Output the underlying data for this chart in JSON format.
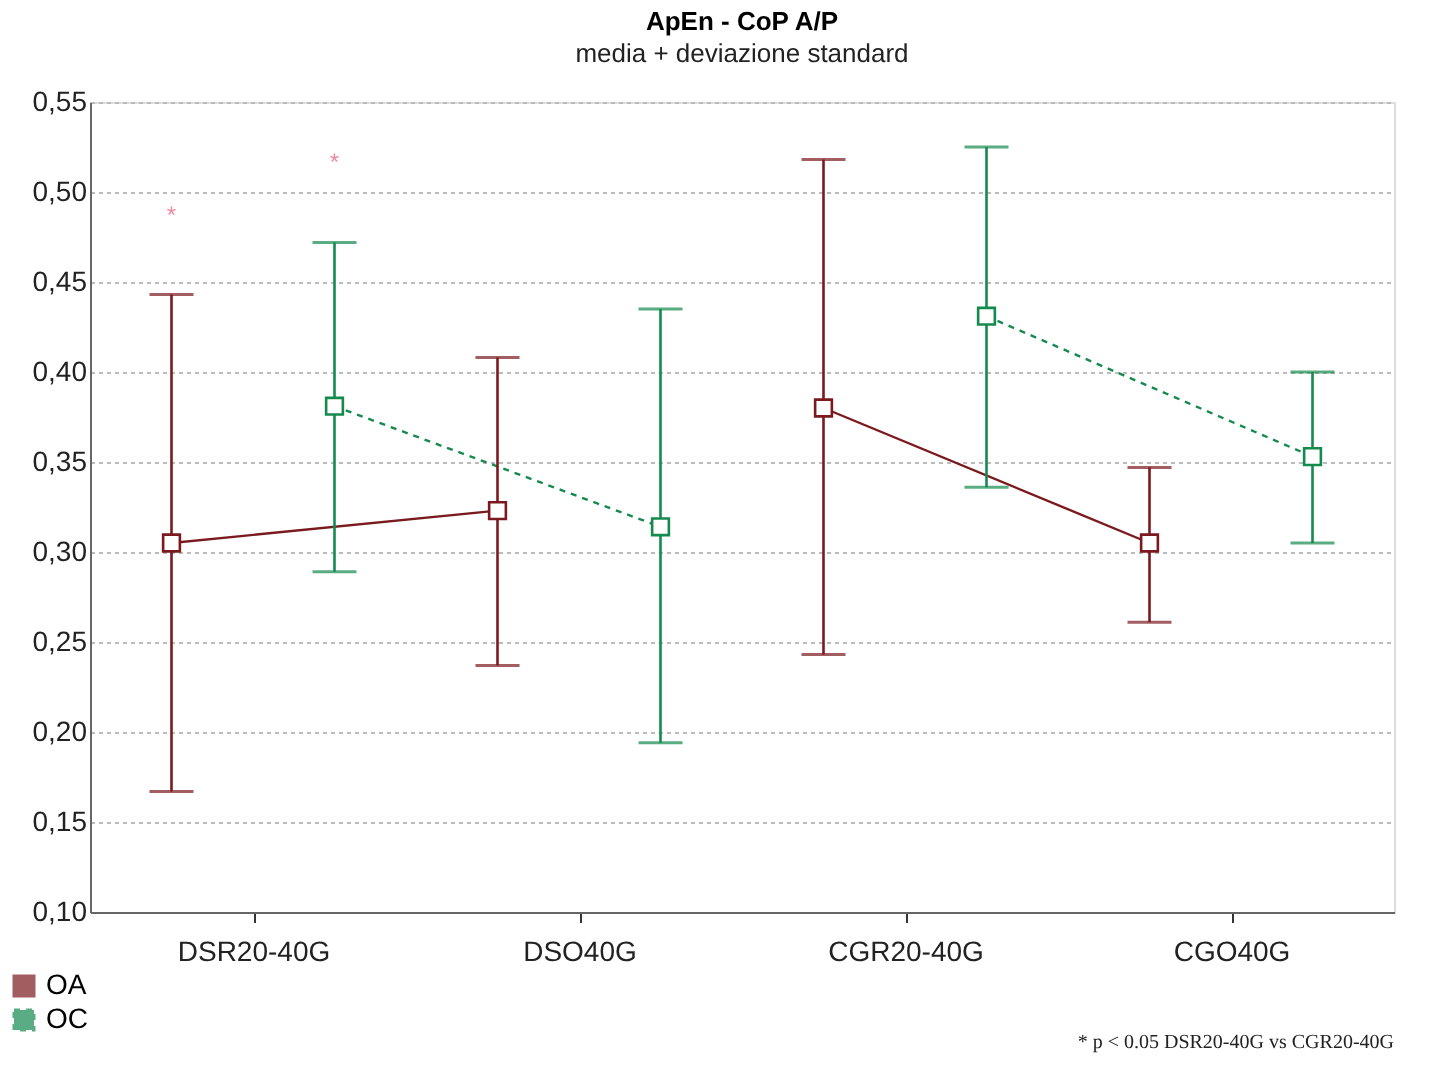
{
  "chart_data": {
    "type": "line",
    "title": "ApEn - CoP A/P",
    "subtitle": "media + deviazione standard",
    "categories": [
      "DSR20-40G",
      "DSO40G",
      "CGR20-40G",
      "CGO40G"
    ],
    "series": [
      {
        "name": "OA",
        "color": "#7b1a1e",
        "line_style": "solid",
        "values": [
          0.305,
          0.323,
          0.38,
          0.305
        ],
        "errors": [
          [
            0.167,
            0.443
          ],
          [
            0.237,
            0.408
          ],
          [
            0.243,
            0.518
          ],
          [
            0.261,
            0.347
          ]
        ]
      },
      {
        "name": "OC",
        "color": "#148a4f",
        "line_style": "dashed",
        "values": [
          0.381,
          0.314,
          0.431,
          0.353
        ],
        "errors": [
          [
            0.289,
            0.472
          ],
          [
            0.194,
            0.435
          ],
          [
            0.336,
            0.525
          ],
          [
            0.305,
            0.4
          ]
        ]
      }
    ],
    "ylim": [
      0.1,
      0.55
    ],
    "yticks": [
      {
        "value": 0.1,
        "label": "0,10"
      },
      {
        "value": 0.15,
        "label": "0,15"
      },
      {
        "value": 0.2,
        "label": "0,20"
      },
      {
        "value": 0.25,
        "label": "0,25"
      },
      {
        "value": 0.3,
        "label": "0,30"
      },
      {
        "value": 0.35,
        "label": "0,35"
      },
      {
        "value": 0.4,
        "label": "0,40"
      },
      {
        "value": 0.45,
        "label": "0,45"
      },
      {
        "value": 0.5,
        "label": "0,50"
      },
      {
        "value": 0.55,
        "label": "0,55"
      }
    ],
    "grid": "y",
    "marker": "square",
    "legend": "bottom left",
    "annotations": [
      "*",
      "*",
      "* p < 0.05 DSR20-40G vs CGR20-40G"
    ]
  }
}
